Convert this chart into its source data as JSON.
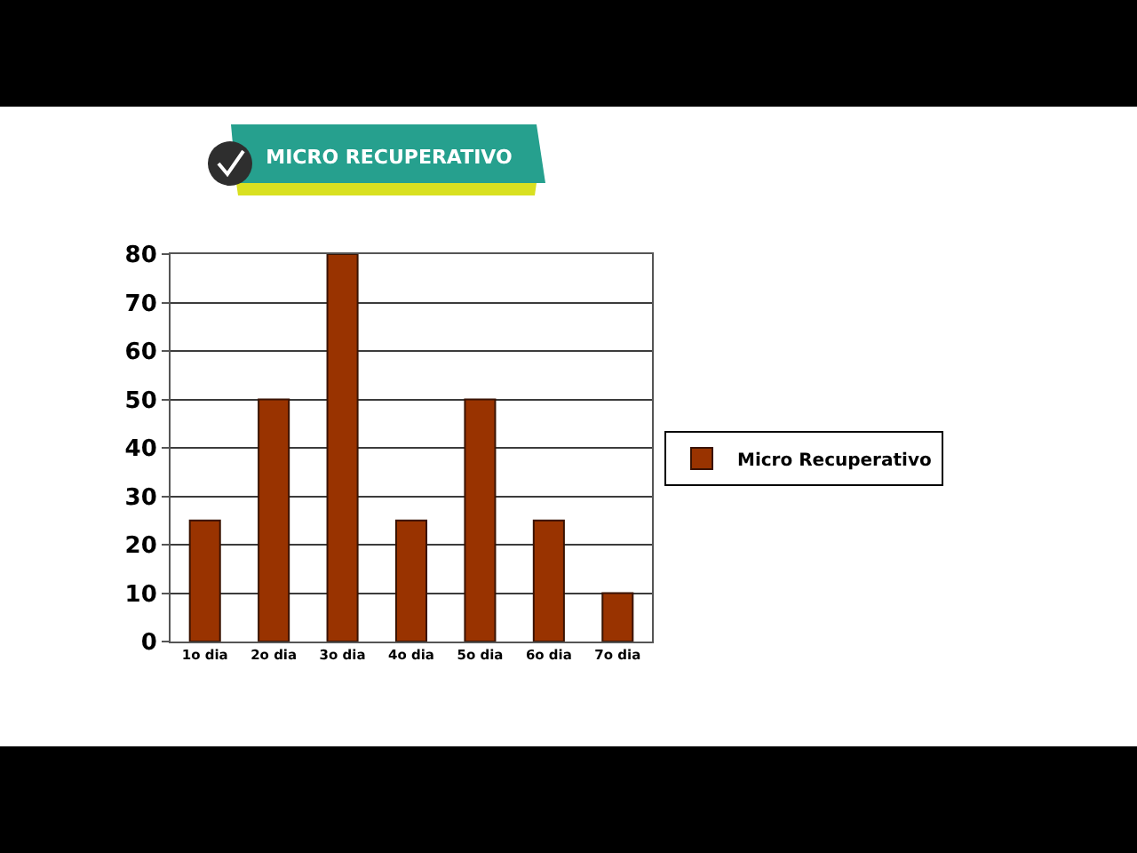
{
  "chart_data": {
    "type": "bar",
    "title": "MICRO RECUPERATIVO",
    "categories": [
      "1o dia",
      "2o dia",
      "3o dia",
      "4o dia",
      "5o dia",
      "6o dia",
      "7o dia"
    ],
    "series": [
      {
        "name": "Micro Recuperativo",
        "color": "#993300",
        "values": [
          25,
          50,
          80,
          25,
          50,
          25,
          10
        ]
      }
    ],
    "ylim": [
      0,
      80
    ],
    "yticks": [
      0,
      10,
      20,
      30,
      40,
      50,
      60,
      70,
      80
    ],
    "grid": "y",
    "legend": "right"
  }
}
